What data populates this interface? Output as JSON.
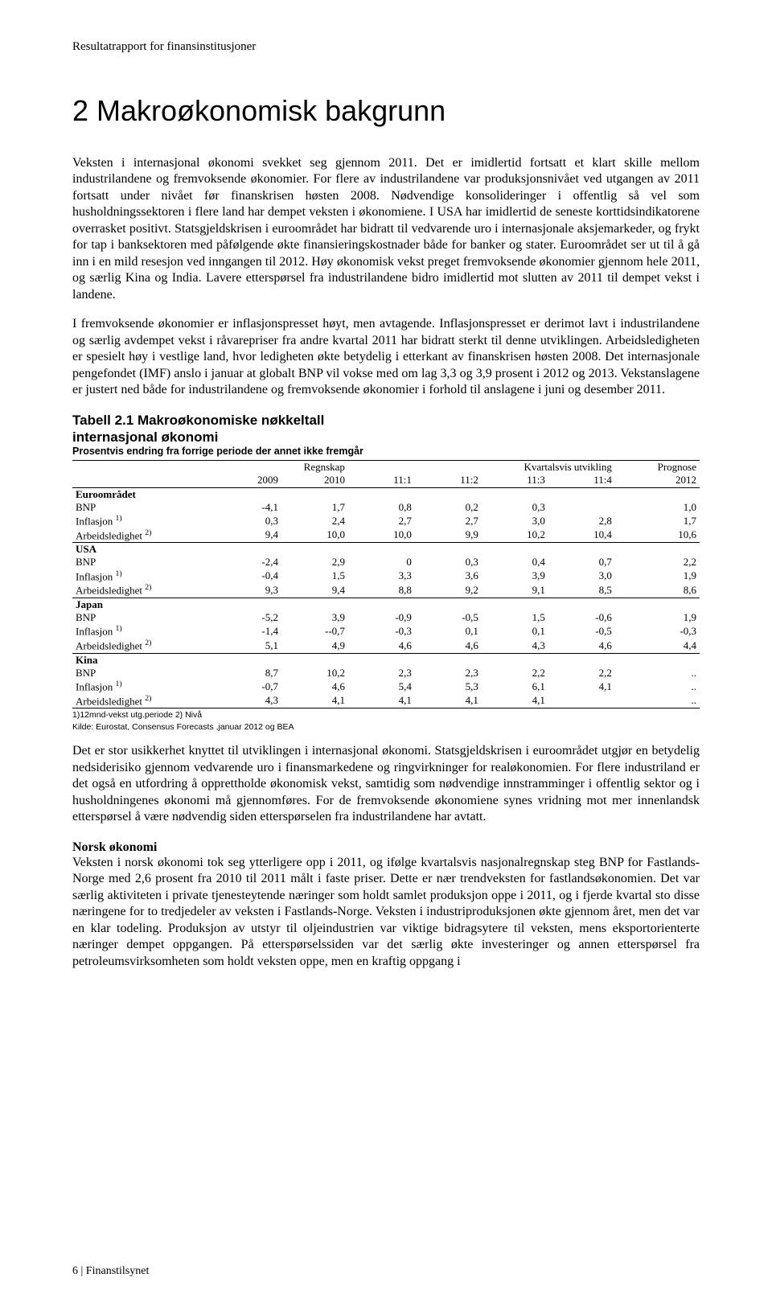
{
  "header": "Resultatrapport for finansinstitusjoner",
  "title": "2   Makroøkonomisk bakgrunn",
  "para1": "Veksten i internasjonal økonomi svekket seg gjennom 2011. Det er imidlertid fortsatt et klart skille mellom industrilandene og fremvoksende økonomier. For flere av industrilandene var produksjonsnivået ved utgangen av 2011 fortsatt under nivået før finanskrisen høsten 2008. Nødvendige konsolideringer i offentlig så vel som husholdningssektoren i flere land har dempet veksten i økonomiene. I USA har imidlertid de seneste korttidsindikatorene overrasket positivt. Statsgjeldskrisen i euroområdet har bidratt til vedvarende uro i internasjonale aksjemarkeder, og frykt for tap i banksektoren med påfølgende økte finansieringskostnader både for banker og stater. Euroområdet ser ut til å gå inn i en mild resesjon ved inngangen til 2012. Høy økonomisk vekst preget fremvoksende økonomier gjennom hele 2011, og særlig Kina og India.  Lavere etterspørsel fra industrilandene bidro imidlertid mot slutten av 2011 til dempet vekst i landene.",
  "para2": "I fremvoksende økonomier er inflasjonspresset høyt, men avtagende. Inflasjonspresset er derimot lavt i industrilandene og særlig avdempet vekst i råvarepriser fra andre kvartal 2011 har bidratt sterkt til denne utviklingen.  Arbeidsledigheten er spesielt høy i vestlige land, hvor ledigheten økte betydelig i etterkant av finanskrisen høsten 2008. Det internasjonale pengefondet (IMF) anslo i januar at globalt BNP vil vokse med om lag 3,3 og 3,9 prosent i 2012 og 2013. Vekstanslagene er justert ned både for industrilandene og fremvoksende økonomier i forhold til anslagene i juni og desember 2011.",
  "table": {
    "title_line1": "Tabell 2.1 Makroøkonomiske nøkkeltall",
    "title_line2": "internasjonal økonomi",
    "subtitle": "Prosentvis endring fra forrige periode der annet ikke fremgår",
    "header1": {
      "regnskap": "Regnskap",
      "kvartal": "Kvartalsvis utvikling",
      "prognose": "Prognose"
    },
    "header2": [
      "2009",
      "2010",
      "11:1",
      "11:2",
      "11:3",
      "11:4",
      "2012"
    ],
    "sections": [
      {
        "name": "Euroområdet",
        "rows": [
          {
            "label": "BNP",
            "vals": [
              "-4,1",
              "1,7",
              "0,8",
              "0,2",
              "0,3",
              "",
              "1,0"
            ]
          },
          {
            "label": "Inflasjon",
            "sup": "1)",
            "vals": [
              "0,3",
              "2,4",
              "2,7",
              "2,7",
              "3,0",
              "2,8",
              "1,7"
            ]
          },
          {
            "label": "Arbeidsledighet",
            "sup": "2)",
            "vals": [
              "9,4",
              "10,0",
              "10,0",
              "9,9",
              "10,2",
              "10,4",
              "10,6"
            ]
          }
        ]
      },
      {
        "name": "USA",
        "rows": [
          {
            "label": "BNP",
            "vals": [
              "-2,4",
              "2,9",
              "0",
              "0,3",
              "0,4",
              "0,7",
              "2,2"
            ]
          },
          {
            "label": "Inflasjon",
            "sup": "1)",
            "vals": [
              "-0,4",
              "1,5",
              "3,3",
              "3,6",
              "3,9",
              "3,0",
              "1,9"
            ]
          },
          {
            "label": "Arbeidsledighet",
            "sup": "2)",
            "vals": [
              "9,3",
              "9,4",
              "8,8",
              "9,2",
              "9,1",
              "8,5",
              "8,6"
            ]
          }
        ]
      },
      {
        "name": "Japan",
        "rows": [
          {
            "label": "BNP",
            "vals": [
              "-5,2",
              "3,9",
              "-0,9",
              "-0,5",
              "1,5",
              "-0,6",
              "1,9"
            ]
          },
          {
            "label": "Inflasjon",
            "sup": "1)",
            "vals": [
              "-1,4",
              "--0,7",
              "-0,3",
              "0,1",
              "0,1",
              "-0,5",
              "-0,3"
            ]
          },
          {
            "label": "Arbeidsledighet",
            "sup": "2)",
            "vals": [
              "5,1",
              "4,9",
              "4,6",
              "4,6",
              "4,3",
              "4,6",
              "4,4"
            ]
          }
        ]
      },
      {
        "name": "Kina",
        "rows": [
          {
            "label": "BNP",
            "vals": [
              "8,7",
              "10,2",
              "2,3",
              "2,3",
              "2,2",
              "2,2",
              ".."
            ]
          },
          {
            "label": "Inflasjon",
            "sup": "1)",
            "vals": [
              "-0,7",
              "4,6",
              "5,4",
              "5,3",
              "6,1",
              "4,1",
              ".."
            ]
          },
          {
            "label": "Arbeidsledighet",
            "sup": "2)",
            "vals": [
              "4,3",
              "4,1",
              "4,1",
              "4,1",
              "4,1",
              "",
              ".."
            ]
          }
        ]
      }
    ],
    "footnote1": "1)12mnd-vekst utg.periode 2) Nivå",
    "footnote2": "Kilde: Eurostat, Consensus Forecasts ,januar 2012  og  BEA"
  },
  "para3": "Det er stor usikkerhet knyttet til utviklingen i internasjonal økonomi. Statsgjeldskrisen i euroområdet utgjør en betydelig nedsiderisiko gjennom vedvarende uro i finansmarkedene og ringvirkninger for realøkonomien.  For flere industriland er det også en utfordring å opprettholde økonomisk vekst, samtidig som nødvendige innstramminger i offentlig sektor og i husholdningenes økonomi må gjennomføres. For de fremvoksende økonomiene synes vridning mot mer innenlandsk etterspørsel å være nødvendig siden etterspørselen fra industrilandene har avtatt.",
  "sub_heading": "Norsk økonomi",
  "para4": "Veksten i norsk økonomi tok seg ytterligere opp i 2011, og ifølge kvartalsvis nasjonalregnskap steg BNP for Fastlands-Norge med 2,6 prosent fra 2010 til 2011 målt i faste priser. Dette er nær trendveksten for fastlandsøkonomien. Det var særlig aktiviteten i private tjenesteytende næringer som holdt samlet produksjon oppe i 2011, og i fjerde kvartal sto disse næringene for to tredjedeler av veksten i Fastlands-Norge.  Veksten i industriproduksjonen økte gjennom året, men det var en klar todeling.  Produksjon av utstyr til oljeindustrien var viktige bidragsytere til veksten, mens eksportorienterte næringer dempet oppgangen. På etterspørselssiden var det særlig økte investeringer og annen etterspørsel fra petroleumsvirksomheten som holdt veksten oppe, men en kraftig oppgang i",
  "footer": "6 | Finanstilsynet"
}
